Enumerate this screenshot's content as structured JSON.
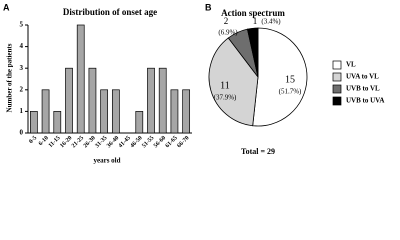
{
  "panel_labels": [
    "A",
    "B"
  ],
  "chart_data": [
    {
      "type": "bar",
      "title": "Distribution of onset age",
      "x_label": "years old",
      "y_label": "Number of the patients",
      "categories": [
        "0-5",
        "6-10",
        "11-15",
        "16-20",
        "21-25",
        "26-30",
        "31-35",
        "36-40",
        "41-45",
        "46-50",
        "51-55",
        "56-60",
        "61-65",
        "66-70"
      ],
      "values": [
        1,
        2,
        1,
        3,
        5,
        3,
        2,
        2,
        0,
        1,
        3,
        3,
        2,
        2
      ],
      "color": "#a6a6a6",
      "ylim": [
        0,
        5
      ],
      "yticks": [
        0,
        1,
        2,
        3,
        4,
        5
      ]
    },
    {
      "type": "pie",
      "title": "Action spectrum",
      "categories": [
        "VL",
        "UVA to VL",
        "UVB to VL",
        "UVB to UVA"
      ],
      "values": [
        15,
        11,
        2,
        1
      ],
      "percent_labels": [
        "(51.7%)",
        "(37.9%)",
        "(6.9%)",
        "(3.4%)"
      ],
      "colors": [
        "#ffffff",
        "#d4d4d4",
        "#6e6e6e",
        "#000000"
      ],
      "total_label": "Total = 29"
    }
  ]
}
